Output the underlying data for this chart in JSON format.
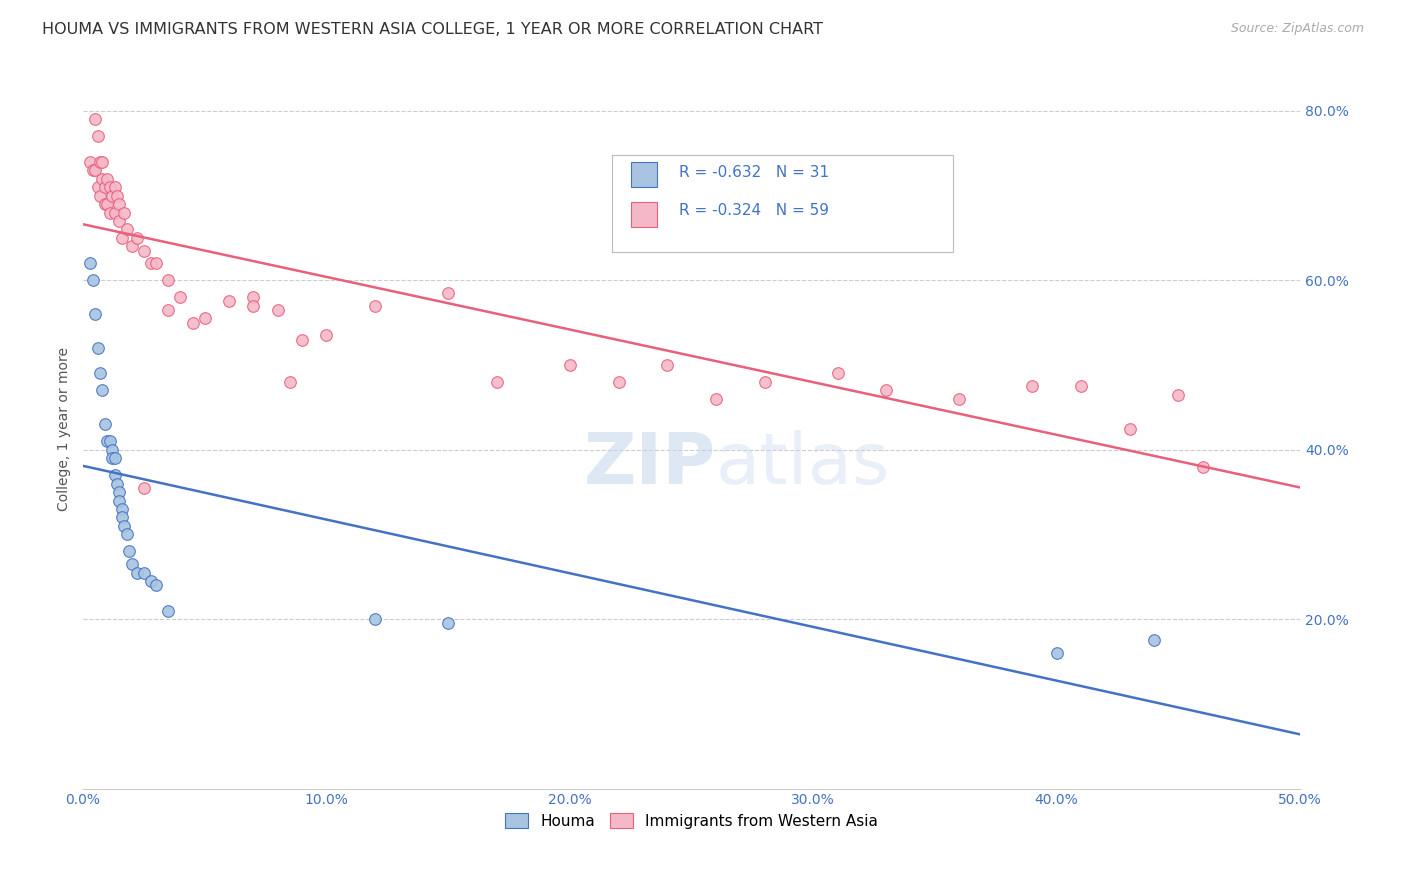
{
  "title": "HOUMA VS IMMIGRANTS FROM WESTERN ASIA COLLEGE, 1 YEAR OR MORE CORRELATION CHART",
  "source": "Source: ZipAtlas.com",
  "ylabel": "College, 1 year or more",
  "xlim": [
    0.0,
    0.5
  ],
  "ylim": [
    0.0,
    0.85
  ],
  "xtick_values": [
    0.0,
    0.1,
    0.2,
    0.3,
    0.4,
    0.5
  ],
  "ytick_values": [
    0.2,
    0.4,
    0.6,
    0.8
  ],
  "legend_R_blue": "-0.632",
  "legend_N_blue": "31",
  "legend_R_pink": "-0.324",
  "legend_N_pink": "59",
  "houma_color": "#a8c4e0",
  "immigrants_color": "#f4b8c8",
  "houma_line_color": "#4472c4",
  "immigrants_line_color": "#e8607a",
  "legend_label_blue": "Houma",
  "legend_label_pink": "Immigrants from Western Asia",
  "houma_x": [
    0.003,
    0.004,
    0.005,
    0.006,
    0.007,
    0.008,
    0.009,
    0.01,
    0.011,
    0.012,
    0.012,
    0.013,
    0.013,
    0.014,
    0.015,
    0.015,
    0.016,
    0.016,
    0.017,
    0.018,
    0.019,
    0.02,
    0.022,
    0.025,
    0.028,
    0.03,
    0.035,
    0.12,
    0.15,
    0.4,
    0.44
  ],
  "houma_y": [
    0.62,
    0.6,
    0.56,
    0.52,
    0.49,
    0.47,
    0.43,
    0.41,
    0.41,
    0.4,
    0.39,
    0.39,
    0.37,
    0.36,
    0.35,
    0.34,
    0.33,
    0.32,
    0.31,
    0.3,
    0.28,
    0.265,
    0.255,
    0.255,
    0.245,
    0.24,
    0.21,
    0.2,
    0.195,
    0.16,
    0.175
  ],
  "immigrants_x": [
    0.003,
    0.004,
    0.005,
    0.005,
    0.006,
    0.006,
    0.007,
    0.007,
    0.008,
    0.008,
    0.009,
    0.009,
    0.01,
    0.01,
    0.011,
    0.011,
    0.012,
    0.013,
    0.013,
    0.014,
    0.015,
    0.015,
    0.016,
    0.017,
    0.018,
    0.02,
    0.022,
    0.025,
    0.028,
    0.03,
    0.035,
    0.04,
    0.05,
    0.06,
    0.07,
    0.08,
    0.09,
    0.1,
    0.12,
    0.15,
    0.17,
    0.2,
    0.22,
    0.24,
    0.26,
    0.28,
    0.31,
    0.33,
    0.36,
    0.39,
    0.41,
    0.43,
    0.45,
    0.46,
    0.07,
    0.085,
    0.045,
    0.035,
    0.025
  ],
  "immigrants_y": [
    0.74,
    0.73,
    0.79,
    0.73,
    0.77,
    0.71,
    0.74,
    0.7,
    0.74,
    0.72,
    0.71,
    0.69,
    0.72,
    0.69,
    0.68,
    0.71,
    0.7,
    0.71,
    0.68,
    0.7,
    0.69,
    0.67,
    0.65,
    0.68,
    0.66,
    0.64,
    0.65,
    0.635,
    0.62,
    0.62,
    0.6,
    0.58,
    0.555,
    0.575,
    0.58,
    0.565,
    0.53,
    0.535,
    0.57,
    0.585,
    0.48,
    0.5,
    0.48,
    0.5,
    0.46,
    0.48,
    0.49,
    0.47,
    0.46,
    0.475,
    0.475,
    0.425,
    0.465,
    0.38,
    0.57,
    0.48,
    0.55,
    0.565,
    0.355
  ],
  "watermark_zip": "ZIP",
  "watermark_atlas": "atlas",
  "background_color": "#ffffff",
  "grid_color": "#cccccc",
  "title_fontsize": 11.5,
  "axis_label_fontsize": 10,
  "tick_fontsize": 10,
  "legend_fontsize": 11,
  "marker_size": 70
}
